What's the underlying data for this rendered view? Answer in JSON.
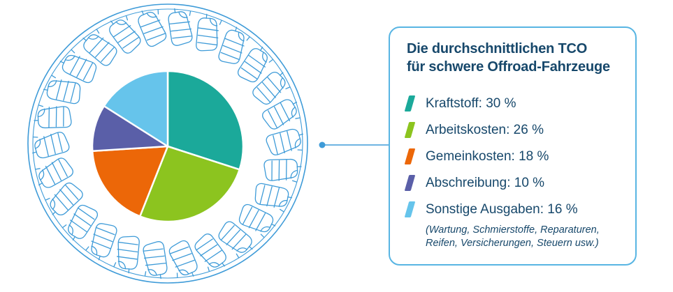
{
  "chart_data": {
    "type": "pie",
    "title": "Die durchschnittlichen TCO für schwere Offroad-Fahrzeuge",
    "categories": [
      "Kraftstoff",
      "Arbeitskosten",
      "Gemeinkosten",
      "Abschreibung",
      "Sonstige Ausgaben"
    ],
    "values": [
      30,
      26,
      18,
      10,
      16
    ],
    "unit": "%",
    "colors": [
      "#1BA99A",
      "#8CC41F",
      "#EC6708",
      "#5A5FA8",
      "#66C4EB"
    ],
    "start_angle_deg": -90,
    "direction": "clockwise",
    "legend_position": "right",
    "slice_gap_color": "#ffffff",
    "note": "(Wartung, Schmierstoffe, Reparaturen, Reifen, Versicherungen, Steuern usw.)"
  },
  "legend": {
    "title": "Die durchschnittlichen TCO\nfür schwere Offroad-Fahrzeuge",
    "items": [
      {
        "text": "Kraftstoff: 30 %",
        "color": "#1BA99A"
      },
      {
        "text": "Arbeitskosten: 26 %",
        "color": "#8CC41F"
      },
      {
        "text": "Gemeinkosten: 18 %",
        "color": "#EC6708"
      },
      {
        "text": "Abschreibung: 10 %",
        "color": "#5A5FA8"
      },
      {
        "text": "Sonstige Ausgaben: 16 %",
        "color": "#66C4EB"
      }
    ],
    "note": "(Wartung, Schmierstoffe, Reparaturen,\nReifen, Versicherungen, Steuern usw.)"
  },
  "decor": {
    "tire_line_color": "#3E9BD8",
    "connector_color": "#3E9BD8",
    "card_border_color": "#58B5E3",
    "text_color": "#17486B"
  }
}
